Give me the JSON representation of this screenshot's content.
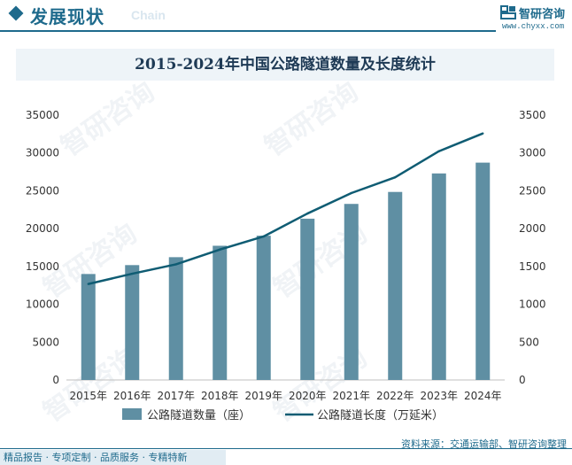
{
  "header": {
    "title": "发展现状",
    "subtitle": "Chain",
    "logo_name": "智研咨询",
    "logo_url": "www.chyxx.com"
  },
  "watermark_text": "智研咨询",
  "colors": {
    "bar": "#5f8fa3",
    "line": "#0f5c73",
    "accent": "#1e6a8c"
  },
  "chart_data": {
    "type": "bar",
    "title": "2015-2024年中国公路隧道数量及长度统计",
    "categories": [
      "2015年",
      "2016年",
      "2017年",
      "2018年",
      "2019年",
      "2020年",
      "2021年",
      "2022年",
      "2023年",
      "2024年"
    ],
    "series": [
      {
        "name": "公路隧道数量（座）",
        "type": "bar",
        "axis": "left",
        "values": [
          14006,
          15181,
          16229,
          17738,
          19067,
          21316,
          23268,
          24850,
          27297,
          28724
        ]
      },
      {
        "name": "公路隧道长度（万延米）",
        "type": "line",
        "axis": "right",
        "values": [
          1268.39,
          1403.97,
          1528.51,
          1723.61,
          1896.66,
          2199.93,
          2469.89,
          2678.43,
          3023.18,
          3257.86
        ]
      }
    ],
    "ylim_left": [
      0,
      35000
    ],
    "yticks_left": [
      "0",
      "5000",
      "10000",
      "15000",
      "20000",
      "25000",
      "30000",
      "35000"
    ],
    "ylim_right": [
      0,
      3500
    ],
    "yticks_right": [
      "0",
      "500",
      "1000",
      "1500",
      "2000",
      "2500",
      "3000",
      "3500"
    ],
    "legend_position": "bottom"
  },
  "footer": {
    "source": "资料来源：交通运输部、智研咨询整理",
    "tagline": "精品报告 · 专项定制 · 品质服务 · 专精特新"
  }
}
